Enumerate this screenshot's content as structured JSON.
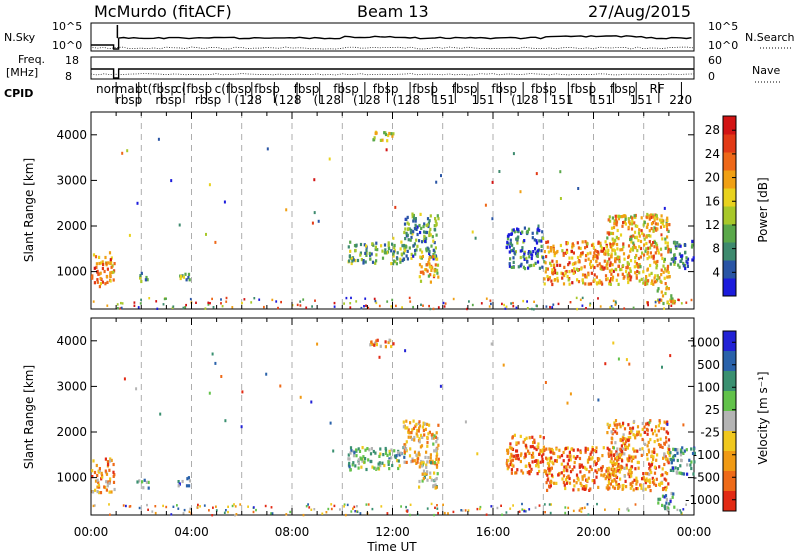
{
  "header": {
    "station": "McMurdo (fitACF)",
    "beam": "Beam 13",
    "date": "27/Aug/2015"
  },
  "strip": {
    "nsky_label": "N.Sky",
    "nsky_ticks": [
      "10^5",
      "10^0"
    ],
    "nsky_right_ticks": [
      "10^5",
      "10^0"
    ],
    "nsearch_label": "N.Search",
    "freq_label_line1": "Freq.",
    "freq_label_line2": "[MHz]",
    "freq_ticks": [
      "18",
      "8"
    ],
    "nave_ticks": [
      "60",
      "0"
    ],
    "nave_label": "Nave",
    "cpid_label": "CPID",
    "cpid_entries": [
      "normal",
      "rbsp",
      "ot(fbsp",
      "rbsp",
      "c(fbsp",
      "rbsp",
      "c(fbsp",
      "(128",
      "fbsp",
      "(128",
      "fbsp",
      "(128",
      "fbsp",
      "(128",
      "fbsp",
      "(128",
      "fbsp",
      "151",
      "fbsp",
      "151",
      "fbsp",
      "(128",
      "fbsp",
      "151",
      "fbsp",
      "151",
      "fbsp",
      "151",
      "RF",
      "220"
    ]
  },
  "chart_data": [
    {
      "type": "heatmap",
      "name": "power",
      "ylabel": "Slant Range [km]",
      "ylim": [
        180,
        4500
      ],
      "xlim_hours": [
        0,
        24
      ],
      "yticks": [
        "1000",
        "2000",
        "3000",
        "4000"
      ],
      "colorbar": {
        "label": "Power [dB]",
        "ticks": [
          "4",
          "8",
          "12",
          "16",
          "20",
          "24",
          "28"
        ],
        "colors": [
          "#1c1cdc",
          "#2a55a5",
          "#3e8a6e",
          "#5aa84a",
          "#a8c82a",
          "#e8d21e",
          "#f0a014",
          "#ee6818",
          "#e23a16",
          "#d21414"
        ]
      },
      "clusters": [
        {
          "x0": 0.0,
          "x1": 0.9,
          "y0": 700,
          "y1": 1450,
          "level": 0.7
        },
        {
          "x0": 1.8,
          "x1": 2.3,
          "y0": 800,
          "y1": 1000,
          "level": 0.3
        },
        {
          "x0": 3.3,
          "x1": 3.9,
          "y0": 850,
          "y1": 1050,
          "level": 0.35
        },
        {
          "x0": 11.0,
          "x1": 12.0,
          "y0": 3900,
          "y1": 4100,
          "level": 0.5
        },
        {
          "x0": 10.2,
          "x1": 12.5,
          "y0": 1200,
          "y1": 1700,
          "level": 0.35
        },
        {
          "x0": 12.4,
          "x1": 13.8,
          "y0": 1300,
          "y1": 2300,
          "level": 0.3
        },
        {
          "x0": 13.0,
          "x1": 13.8,
          "y0": 800,
          "y1": 1400,
          "level": 0.6
        },
        {
          "x0": 16.5,
          "x1": 18.0,
          "y0": 1100,
          "y1": 2000,
          "level": 0.2
        },
        {
          "x0": 18.0,
          "x1": 21.0,
          "y0": 750,
          "y1": 1700,
          "level": 0.7
        },
        {
          "x0": 20.5,
          "x1": 23.0,
          "y0": 750,
          "y1": 2300,
          "level": 0.6
        },
        {
          "x0": 22.5,
          "x1": 23.2,
          "y0": 300,
          "y1": 700,
          "level": 0.55
        },
        {
          "x0": 23.0,
          "x1": 24.0,
          "y0": 1100,
          "y1": 1700,
          "level": 0.2
        }
      ]
    },
    {
      "type": "heatmap",
      "name": "velocity",
      "ylabel": "Slant Range [km]",
      "xlabel": "Time UT",
      "ylim": [
        180,
        4500
      ],
      "xlim_hours": [
        0,
        24
      ],
      "yticks": [
        "1000",
        "2000",
        "3000",
        "4000"
      ],
      "xticks": [
        "00:00",
        "04:00",
        "08:00",
        "12:00",
        "16:00",
        "20:00",
        "00:00"
      ],
      "colorbar": {
        "label": "Velocity [m s⁻¹]",
        "ticks": [
          "1000",
          "500",
          "100",
          "25",
          "-25",
          "-100",
          "-500",
          "-1000"
        ],
        "colors": [
          "#2222d6",
          "#2a62aa",
          "#3a9070",
          "#62c24a",
          "#b4b4b4",
          "#f0c81e",
          "#f09a14",
          "#ee6a18",
          "#e22a14"
        ]
      },
      "clusters": [
        {
          "x0": 0.0,
          "x1": 0.9,
          "y0": 700,
          "y1": 1450,
          "level": 0.7
        },
        {
          "x0": 1.8,
          "x1": 2.3,
          "y0": 800,
          "y1": 1000,
          "level": 0.3
        },
        {
          "x0": 3.3,
          "x1": 3.9,
          "y0": 850,
          "y1": 1050,
          "level": 0.3
        },
        {
          "x0": 11.0,
          "x1": 12.0,
          "y0": 3900,
          "y1": 4100,
          "level": 0.7
        },
        {
          "x0": 10.2,
          "x1": 12.5,
          "y0": 1200,
          "y1": 1700,
          "level": 0.4
        },
        {
          "x0": 12.4,
          "x1": 13.8,
          "y0": 1300,
          "y1": 2300,
          "level": 0.65
        },
        {
          "x0": 13.0,
          "x1": 13.8,
          "y0": 800,
          "y1": 1400,
          "level": 0.5
        },
        {
          "x0": 16.5,
          "x1": 18.0,
          "y0": 1100,
          "y1": 2000,
          "level": 0.8
        },
        {
          "x0": 18.0,
          "x1": 21.0,
          "y0": 750,
          "y1": 1700,
          "level": 0.8
        },
        {
          "x0": 20.5,
          "x1": 23.0,
          "y0": 750,
          "y1": 2300,
          "level": 0.75
        },
        {
          "x0": 22.5,
          "x1": 23.2,
          "y0": 300,
          "y1": 700,
          "level": 0.3
        },
        {
          "x0": 23.0,
          "x1": 24.0,
          "y0": 1100,
          "y1": 1700,
          "level": 0.3
        }
      ]
    }
  ]
}
